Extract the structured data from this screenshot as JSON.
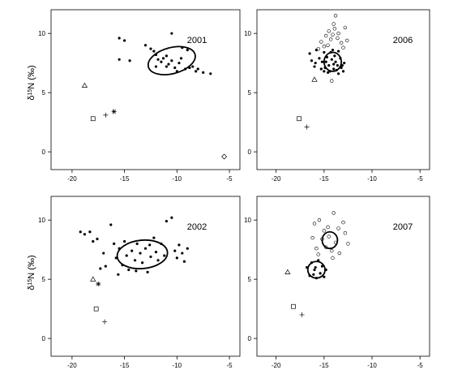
{
  "figure": {
    "ylabel_base": "δ",
    "ylabel_sup": "15",
    "ylabel_rest": "N (‰)"
  },
  "chart_data": [
    {
      "type": "scatter",
      "title": "2001",
      "xlim": [
        -22,
        -4
      ],
      "ylim": [
        -1.5,
        12
      ],
      "xticks": [
        -20,
        -15,
        -10,
        -5
      ],
      "yticks": [
        0,
        5,
        10
      ],
      "show_yaxis_title": true,
      "filled_points": [
        [
          -15.5,
          9.6
        ],
        [
          -15.0,
          9.4
        ],
        [
          -15.5,
          7.8
        ],
        [
          -14.5,
          7.7
        ],
        [
          -13.0,
          9.0
        ],
        [
          -12.5,
          8.7
        ],
        [
          -12.2,
          8.5
        ],
        [
          -12.0,
          8.2
        ],
        [
          -11.8,
          7.8
        ],
        [
          -11.5,
          7.6
        ],
        [
          -11.3,
          7.9
        ],
        [
          -11.0,
          8.1
        ],
        [
          -10.8,
          7.4
        ],
        [
          -10.5,
          7.7
        ],
        [
          -10.5,
          10.0
        ],
        [
          -10.2,
          7.1
        ],
        [
          -10.0,
          6.8
        ],
        [
          -9.8,
          7.5
        ],
        [
          -9.5,
          8.8
        ],
        [
          -9.2,
          7.0
        ],
        [
          -9.0,
          8.6
        ],
        [
          -8.8,
          7.1
        ],
        [
          -8.5,
          7.2
        ],
        [
          -8.2,
          6.8
        ],
        [
          -8.0,
          7.0
        ],
        [
          -7.5,
          6.7
        ],
        [
          -6.8,
          6.6
        ],
        [
          -12.0,
          7.2
        ],
        [
          -11.0,
          7.2
        ],
        [
          -9.6,
          7.9
        ]
      ],
      "open_points": [],
      "ellipses": [
        {
          "cx": -10.5,
          "cy": 7.7,
          "rx": 2.3,
          "ry": 1.1,
          "angle_deg": -15
        }
      ],
      "sources": [
        {
          "marker": "triangle",
          "x": -18.8,
          "y": 5.6
        },
        {
          "marker": "square",
          "x": -18.0,
          "y": 2.8
        },
        {
          "marker": "plus",
          "x": -16.8,
          "y": 3.1
        },
        {
          "marker": "asterisk",
          "x": -16.0,
          "y": 3.4
        },
        {
          "marker": "diamond",
          "x": -5.5,
          "y": -0.4
        }
      ]
    },
    {
      "type": "scatter",
      "title": "2006",
      "xlim": [
        -22,
        -4
      ],
      "ylim": [
        -1.5,
        12
      ],
      "xticks": [
        -20,
        -15,
        -10,
        -5
      ],
      "yticks": [
        0,
        5,
        10
      ],
      "show_yaxis_title": false,
      "filled_points": [
        [
          -16.5,
          8.3
        ],
        [
          -16.3,
          7.7
        ],
        [
          -16.0,
          7.2
        ],
        [
          -15.8,
          8.6
        ],
        [
          -15.5,
          7.9
        ],
        [
          -15.3,
          7.0
        ],
        [
          -15.0,
          8.4
        ],
        [
          -15.0,
          6.8
        ],
        [
          -14.8,
          7.6
        ],
        [
          -14.7,
          8.0
        ],
        [
          -14.5,
          7.3
        ],
        [
          -14.4,
          6.8
        ],
        [
          -14.3,
          8.4
        ],
        [
          -14.2,
          7.8
        ],
        [
          -14.0,
          7.4
        ],
        [
          -14.0,
          7.0
        ],
        [
          -13.9,
          8.1
        ],
        [
          -13.8,
          7.6
        ],
        [
          -13.7,
          6.9
        ],
        [
          -13.6,
          7.3
        ],
        [
          -13.5,
          8.5
        ],
        [
          -13.5,
          6.6
        ],
        [
          -13.3,
          7.9
        ],
        [
          -13.2,
          7.1
        ],
        [
          -13.0,
          6.8
        ],
        [
          -12.9,
          7.5
        ],
        [
          -15.9,
          7.5
        ],
        [
          -15.2,
          7.6
        ],
        [
          -14.6,
          6.7
        ],
        [
          -14.9,
          7.1
        ],
        [
          -13.1,
          7.3
        ],
        [
          -14.1,
          8.6
        ]
      ],
      "open_points": [
        [
          -14.5,
          10.2
        ],
        [
          -14.0,
          10.8
        ],
        [
          -13.8,
          11.5
        ],
        [
          -14.3,
          9.5
        ],
        [
          -13.5,
          10.0
        ],
        [
          -14.8,
          9.8
        ],
        [
          -13.2,
          9.2
        ],
        [
          -15.0,
          8.9
        ],
        [
          -13.0,
          8.8
        ],
        [
          -14.6,
          9.0
        ],
        [
          -13.6,
          9.6
        ],
        [
          -12.8,
          10.5
        ],
        [
          -14.1,
          9.9
        ],
        [
          -15.3,
          9.3
        ],
        [
          -13.9,
          10.4
        ],
        [
          -15.6,
          8.7
        ],
        [
          -14.2,
          6.0
        ],
        [
          -12.6,
          9.4
        ]
      ],
      "ellipses": [
        {
          "cx": -14.1,
          "cy": 7.6,
          "rx": 0.9,
          "ry": 0.8,
          "angle_deg": 0
        }
      ],
      "sources": [
        {
          "marker": "triangle",
          "x": -16.0,
          "y": 6.1
        },
        {
          "marker": "square",
          "x": -17.6,
          "y": 2.8
        },
        {
          "marker": "plus",
          "x": -16.8,
          "y": 2.1
        }
      ]
    },
    {
      "type": "scatter",
      "title": "2002",
      "xlim": [
        -22,
        -4
      ],
      "ylim": [
        -1.5,
        12
      ],
      "xticks": [
        -20,
        -15,
        -10,
        -5
      ],
      "yticks": [
        0,
        5,
        10
      ],
      "show_yaxis_title": true,
      "filled_points": [
        [
          -19.2,
          9.0
        ],
        [
          -18.8,
          8.8
        ],
        [
          -18.3,
          9.0
        ],
        [
          -18.0,
          8.2
        ],
        [
          -17.6,
          8.4
        ],
        [
          -17.0,
          7.2
        ],
        [
          -16.3,
          9.6
        ],
        [
          -16.0,
          8.0
        ],
        [
          -15.8,
          6.8
        ],
        [
          -15.5,
          7.6
        ],
        [
          -15.2,
          6.2
        ],
        [
          -15.0,
          8.2
        ],
        [
          -14.8,
          7.0
        ],
        [
          -14.6,
          5.8
        ],
        [
          -14.3,
          7.4
        ],
        [
          -14.0,
          6.6
        ],
        [
          -13.8,
          8.0
        ],
        [
          -13.5,
          7.2
        ],
        [
          -13.3,
          6.4
        ],
        [
          -13.0,
          7.6
        ],
        [
          -12.8,
          5.6
        ],
        [
          -12.5,
          6.9
        ],
        [
          -12.2,
          8.5
        ],
        [
          -12.0,
          7.3
        ],
        [
          -11.8,
          6.6
        ],
        [
          -11.5,
          8.0
        ],
        [
          -11.2,
          7.0
        ],
        [
          -11.0,
          9.9
        ],
        [
          -10.5,
          10.2
        ],
        [
          -10.2,
          7.4
        ],
        [
          -10.0,
          6.8
        ],
        [
          -9.8,
          7.9
        ],
        [
          -9.5,
          7.2
        ],
        [
          -9.3,
          6.5
        ],
        [
          -9.0,
          7.6
        ],
        [
          -15.6,
          5.4
        ],
        [
          -16.8,
          6.1
        ],
        [
          -17.3,
          5.9
        ],
        [
          -13.9,
          5.7
        ],
        [
          -12.6,
          7.9
        ]
      ],
      "open_points": [],
      "ellipses": [
        {
          "cx": -13.3,
          "cy": 7.1,
          "rx": 2.4,
          "ry": 1.2,
          "angle_deg": -5
        }
      ],
      "sources": [
        {
          "marker": "triangle",
          "x": -18.0,
          "y": 5.0
        },
        {
          "marker": "asterisk",
          "x": -17.5,
          "y": 4.6
        },
        {
          "marker": "square",
          "x": -17.7,
          "y": 2.5
        },
        {
          "marker": "plus",
          "x": -16.9,
          "y": 1.4
        }
      ]
    },
    {
      "type": "scatter",
      "title": "2007",
      "xlim": [
        -22,
        -4
      ],
      "ylim": [
        -1.5,
        12
      ],
      "xticks": [
        -20,
        -15,
        -10,
        -5
      ],
      "yticks": [
        0,
        5,
        10
      ],
      "show_yaxis_title": false,
      "filled_points": [
        [
          -16.8,
          6.0
        ],
        [
          -16.5,
          5.3
        ],
        [
          -16.3,
          6.4
        ],
        [
          -16.0,
          5.8
        ],
        [
          -15.8,
          5.1
        ],
        [
          -15.6,
          6.6
        ],
        [
          -15.4,
          5.5
        ],
        [
          -15.2,
          6.1
        ],
        [
          -15.0,
          5.2
        ],
        [
          -14.8,
          5.8
        ],
        [
          -15.9,
          6.0
        ],
        [
          -16.1,
          5.4
        ]
      ],
      "open_points": [
        [
          -16.0,
          9.7
        ],
        [
          -15.5,
          10.0
        ],
        [
          -15.0,
          9.1
        ],
        [
          -14.5,
          8.6
        ],
        [
          -14.0,
          10.6
        ],
        [
          -13.5,
          9.3
        ],
        [
          -13.0,
          9.8
        ],
        [
          -12.5,
          8.0
        ],
        [
          -12.8,
          8.9
        ],
        [
          -14.8,
          7.7
        ],
        [
          -14.2,
          7.4
        ],
        [
          -15.6,
          7.1
        ],
        [
          -13.8,
          8.1
        ],
        [
          -16.2,
          8.5
        ],
        [
          -15.2,
          8.4
        ],
        [
          -14.6,
          9.4
        ],
        [
          -15.8,
          7.6
        ],
        [
          -13.4,
          7.2
        ],
        [
          -14.1,
          6.8
        ]
      ],
      "ellipses": [
        {
          "cx": -15.8,
          "cy": 5.8,
          "rx": 0.9,
          "ry": 0.7,
          "angle_deg": 0
        },
        {
          "cx": -14.4,
          "cy": 8.3,
          "rx": 0.8,
          "ry": 0.7,
          "angle_deg": 0
        }
      ],
      "sources": [
        {
          "marker": "triangle",
          "x": -18.8,
          "y": 5.6
        },
        {
          "marker": "square",
          "x": -18.2,
          "y": 2.7
        },
        {
          "marker": "plus",
          "x": -17.3,
          "y": 2.0
        }
      ]
    }
  ]
}
